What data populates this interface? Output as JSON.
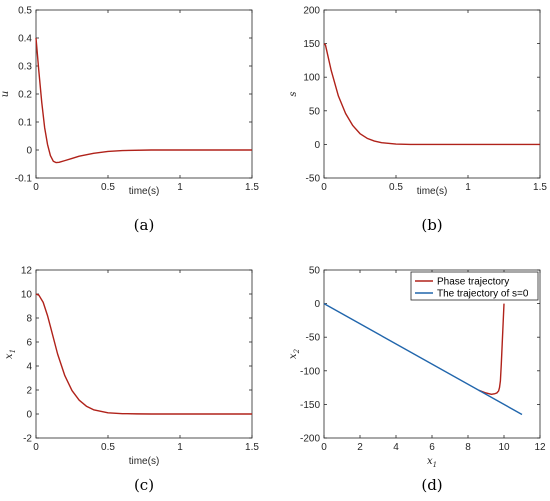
{
  "colors": {
    "trajectory": "#b0221a",
    "sline": "#2166ac",
    "axis": "#262626"
  },
  "panels": [
    {
      "label": "(a)",
      "chart_data": {
        "type": "line",
        "ylabel": "u",
        "xlabel": "time(s)",
        "xlim": [
          0,
          1.5
        ],
        "ylim": [
          -0.1,
          0.5
        ],
        "xticks": [
          0,
          0.5,
          1,
          1.5
        ],
        "xtick_labels": [
          "0",
          "0.5",
          "1",
          "1.5"
        ],
        "yticks": [
          -0.1,
          0,
          0.1,
          0.2,
          0.3,
          0.4,
          0.5
        ],
        "ytick_labels": [
          "-0.1",
          "0",
          "0.1",
          "0.2",
          "0.3",
          "0.4",
          "0.5"
        ],
        "series": [
          {
            "color": "#b0221a",
            "x": [
              0,
              0.02,
              0.04,
              0.06,
              0.08,
              0.1,
              0.12,
              0.14,
              0.16,
              0.2,
              0.25,
              0.3,
              0.4,
              0.5,
              0.6,
              0.8,
              1.0,
              1.2,
              1.5
            ],
            "y": [
              0.4,
              0.28,
              0.17,
              0.08,
              0.02,
              -0.02,
              -0.04,
              -0.045,
              -0.044,
              -0.038,
              -0.03,
              -0.022,
              -0.012,
              -0.005,
              -0.002,
              0,
              0,
              0,
              0
            ]
          }
        ]
      }
    },
    {
      "label": "(b)",
      "chart_data": {
        "type": "line",
        "ylabel": "s",
        "xlabel": "time(s)",
        "xlim": [
          0,
          1.5
        ],
        "ylim": [
          -50,
          200
        ],
        "xticks": [
          0,
          0.5,
          1,
          1.5
        ],
        "xtick_labels": [
          "0",
          "0.5",
          "1",
          "1.5"
        ],
        "yticks": [
          -50,
          0,
          50,
          100,
          150,
          200
        ],
        "ytick_labels": [
          "-50",
          "0",
          "50",
          "100",
          "150",
          "200"
        ],
        "series": [
          {
            "color": "#b0221a",
            "x": [
              0,
              0.01,
              0.05,
              0.1,
              0.15,
              0.2,
              0.25,
              0.3,
              0.35,
              0.4,
              0.5,
              0.6,
              0.8,
              1.0,
              1.5
            ],
            "y": [
              150,
              148,
              110,
              72,
              46,
              28,
              16,
              9,
              5,
              2.5,
              0.5,
              0,
              0,
              0,
              0
            ]
          }
        ]
      }
    },
    {
      "label": "(c)",
      "chart_data": {
        "type": "line",
        "ylabel": "x1",
        "xlabel": "time(s)",
        "xlim": [
          0,
          1.5
        ],
        "ylim": [
          -2,
          12
        ],
        "xticks": [
          0,
          0.5,
          1,
          1.5
        ],
        "xtick_labels": [
          "0",
          "0.5",
          "1",
          "1.5"
        ],
        "yticks": [
          -2,
          0,
          2,
          4,
          6,
          8,
          10,
          12
        ],
        "ytick_labels": [
          "-2",
          "0",
          "2",
          "4",
          "6",
          "8",
          "10",
          "12"
        ],
        "series": [
          {
            "color": "#b0221a",
            "x": [
              0,
              0.02,
              0.05,
              0.08,
              0.1,
              0.15,
              0.2,
              0.25,
              0.3,
              0.35,
              0.4,
              0.5,
              0.6,
              0.7,
              0.8,
              1.0,
              1.5
            ],
            "y": [
              10,
              9.9,
              9.3,
              8.2,
              7.3,
              5.0,
              3.2,
              1.95,
              1.15,
              0.65,
              0.35,
              0.1,
              0.03,
              0.01,
              0,
              0,
              0
            ]
          }
        ]
      }
    },
    {
      "label": "(d)",
      "chart_data": {
        "type": "line",
        "ylabel": "x2",
        "xlabel": "x1",
        "xlim": [
          0,
          12
        ],
        "ylim": [
          -200,
          50
        ],
        "xticks": [
          0,
          2,
          4,
          6,
          8,
          10,
          12
        ],
        "xtick_labels": [
          "0",
          "2",
          "4",
          "6",
          "8",
          "10",
          "12"
        ],
        "yticks": [
          -200,
          -150,
          -100,
          -50,
          0,
          50
        ],
        "ytick_labels": [
          "-200",
          "-150",
          "-100",
          "-50",
          "0",
          "50"
        ],
        "legend": "top-right",
        "series": [
          {
            "name": "Phase trajectory",
            "color": "#b0221a",
            "x": [
              10,
              9.95,
              9.9,
              9.85,
              9.8,
              9.75,
              9.7,
              9.6,
              9.5,
              9.3,
              9.0,
              8.6
            ],
            "y": [
              0,
              -30,
              -60,
              -90,
              -115,
              -125,
              -130,
              -133,
              -134,
              -135,
              -133,
              -129
            ]
          },
          {
            "name": "The trajectory of s=0",
            "color": "#2166ac",
            "x": [
              0,
              11
            ],
            "y": [
              0,
              -165
            ]
          }
        ]
      }
    }
  ]
}
